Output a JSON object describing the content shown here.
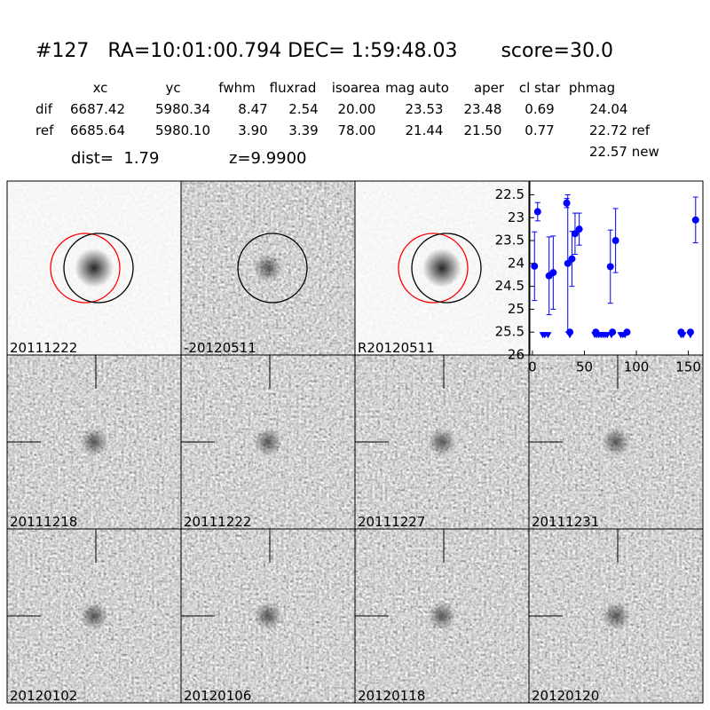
{
  "header": {
    "title": "#127   RA=10:01:00.794 DEC= 1:59:48.03       score=30.0",
    "dist": "dist=  1.79",
    "z": "z=9.9900",
    "extra": [
      "22.72 ref",
      "22.57 new"
    ]
  },
  "table": {
    "columns": [
      "xc",
      "yc",
      "fwhm",
      "fluxrad",
      "isoarea",
      "mag auto",
      "aper",
      "cl star",
      "phmag"
    ],
    "rows": [
      [
        "dif",
        "6687.42",
        "5980.34",
        "8.47",
        "2.54",
        "20.00",
        "23.53",
        "23.48",
        "0.69",
        "24.04"
      ],
      [
        "ref",
        "6685.64",
        "5980.10",
        "3.90",
        "3.39",
        "78.00",
        "21.44",
        "21.50",
        "0.77"
      ]
    ]
  },
  "stamps": [
    {
      "label": "20111222",
      "color": "#000000"
    },
    {
      "label": "-20120511",
      "color": "#000000"
    },
    {
      "label": "R20120511",
      "color": "#000000"
    },
    {
      "label": "20111218",
      "color": "#000000"
    },
    {
      "label": "20111222",
      "color": "#ff0000"
    },
    {
      "label": "20111227",
      "color": "#000000"
    },
    {
      "label": "20111231",
      "color": "#000000"
    },
    {
      "label": "20120102",
      "color": "#000000"
    },
    {
      "label": "20120106",
      "color": "#000000"
    },
    {
      "label": "20120118",
      "color": "#000000"
    },
    {
      "label": "20120120",
      "color": "#000000"
    }
  ],
  "chart_data": {
    "type": "scatter",
    "xlim": [
      -2.5,
      164
    ],
    "ylim": [
      26.0,
      22.2
    ],
    "xticks": [
      0,
      50,
      100,
      150
    ],
    "yticks": [
      22.5,
      23.0,
      23.5,
      24.0,
      24.5,
      25.0,
      25.5,
      26.0
    ],
    "series": [
      {
        "color": "#0000ff",
        "marker": "o",
        "x": [
          2,
          5,
          16,
          20,
          33,
          34,
          36,
          38,
          41,
          45,
          61,
          75,
          77,
          80,
          91,
          143,
          152,
          157
        ],
        "values": [
          24.06,
          22.87,
          24.27,
          24.2,
          22.68,
          24.0,
          25.5,
          23.9,
          23.35,
          23.25,
          25.5,
          24.07,
          25.5,
          23.5,
          25.5,
          25.5,
          25.5,
          23.05
        ],
        "errors": [
          0.75,
          0.2,
          0.85,
          0.8,
          0.1,
          1.5,
          null,
          0.6,
          0.45,
          0.35,
          null,
          0.8,
          null,
          0.7,
          null,
          null,
          null,
          0.5
        ]
      },
      {
        "color": "#0000ff",
        "marker": "v",
        "x": [
          10,
          12,
          15,
          36,
          60,
          62,
          64,
          66,
          68,
          70,
          72,
          76,
          85,
          87,
          89,
          143,
          145,
          152
        ],
        "values": [
          25.5,
          25.5,
          25.5,
          25.5,
          25.5,
          25.5,
          25.5,
          25.5,
          25.5,
          25.5,
          25.5,
          25.5,
          25.5,
          25.5,
          25.5,
          25.5,
          25.5,
          25.5
        ]
      }
    ]
  }
}
